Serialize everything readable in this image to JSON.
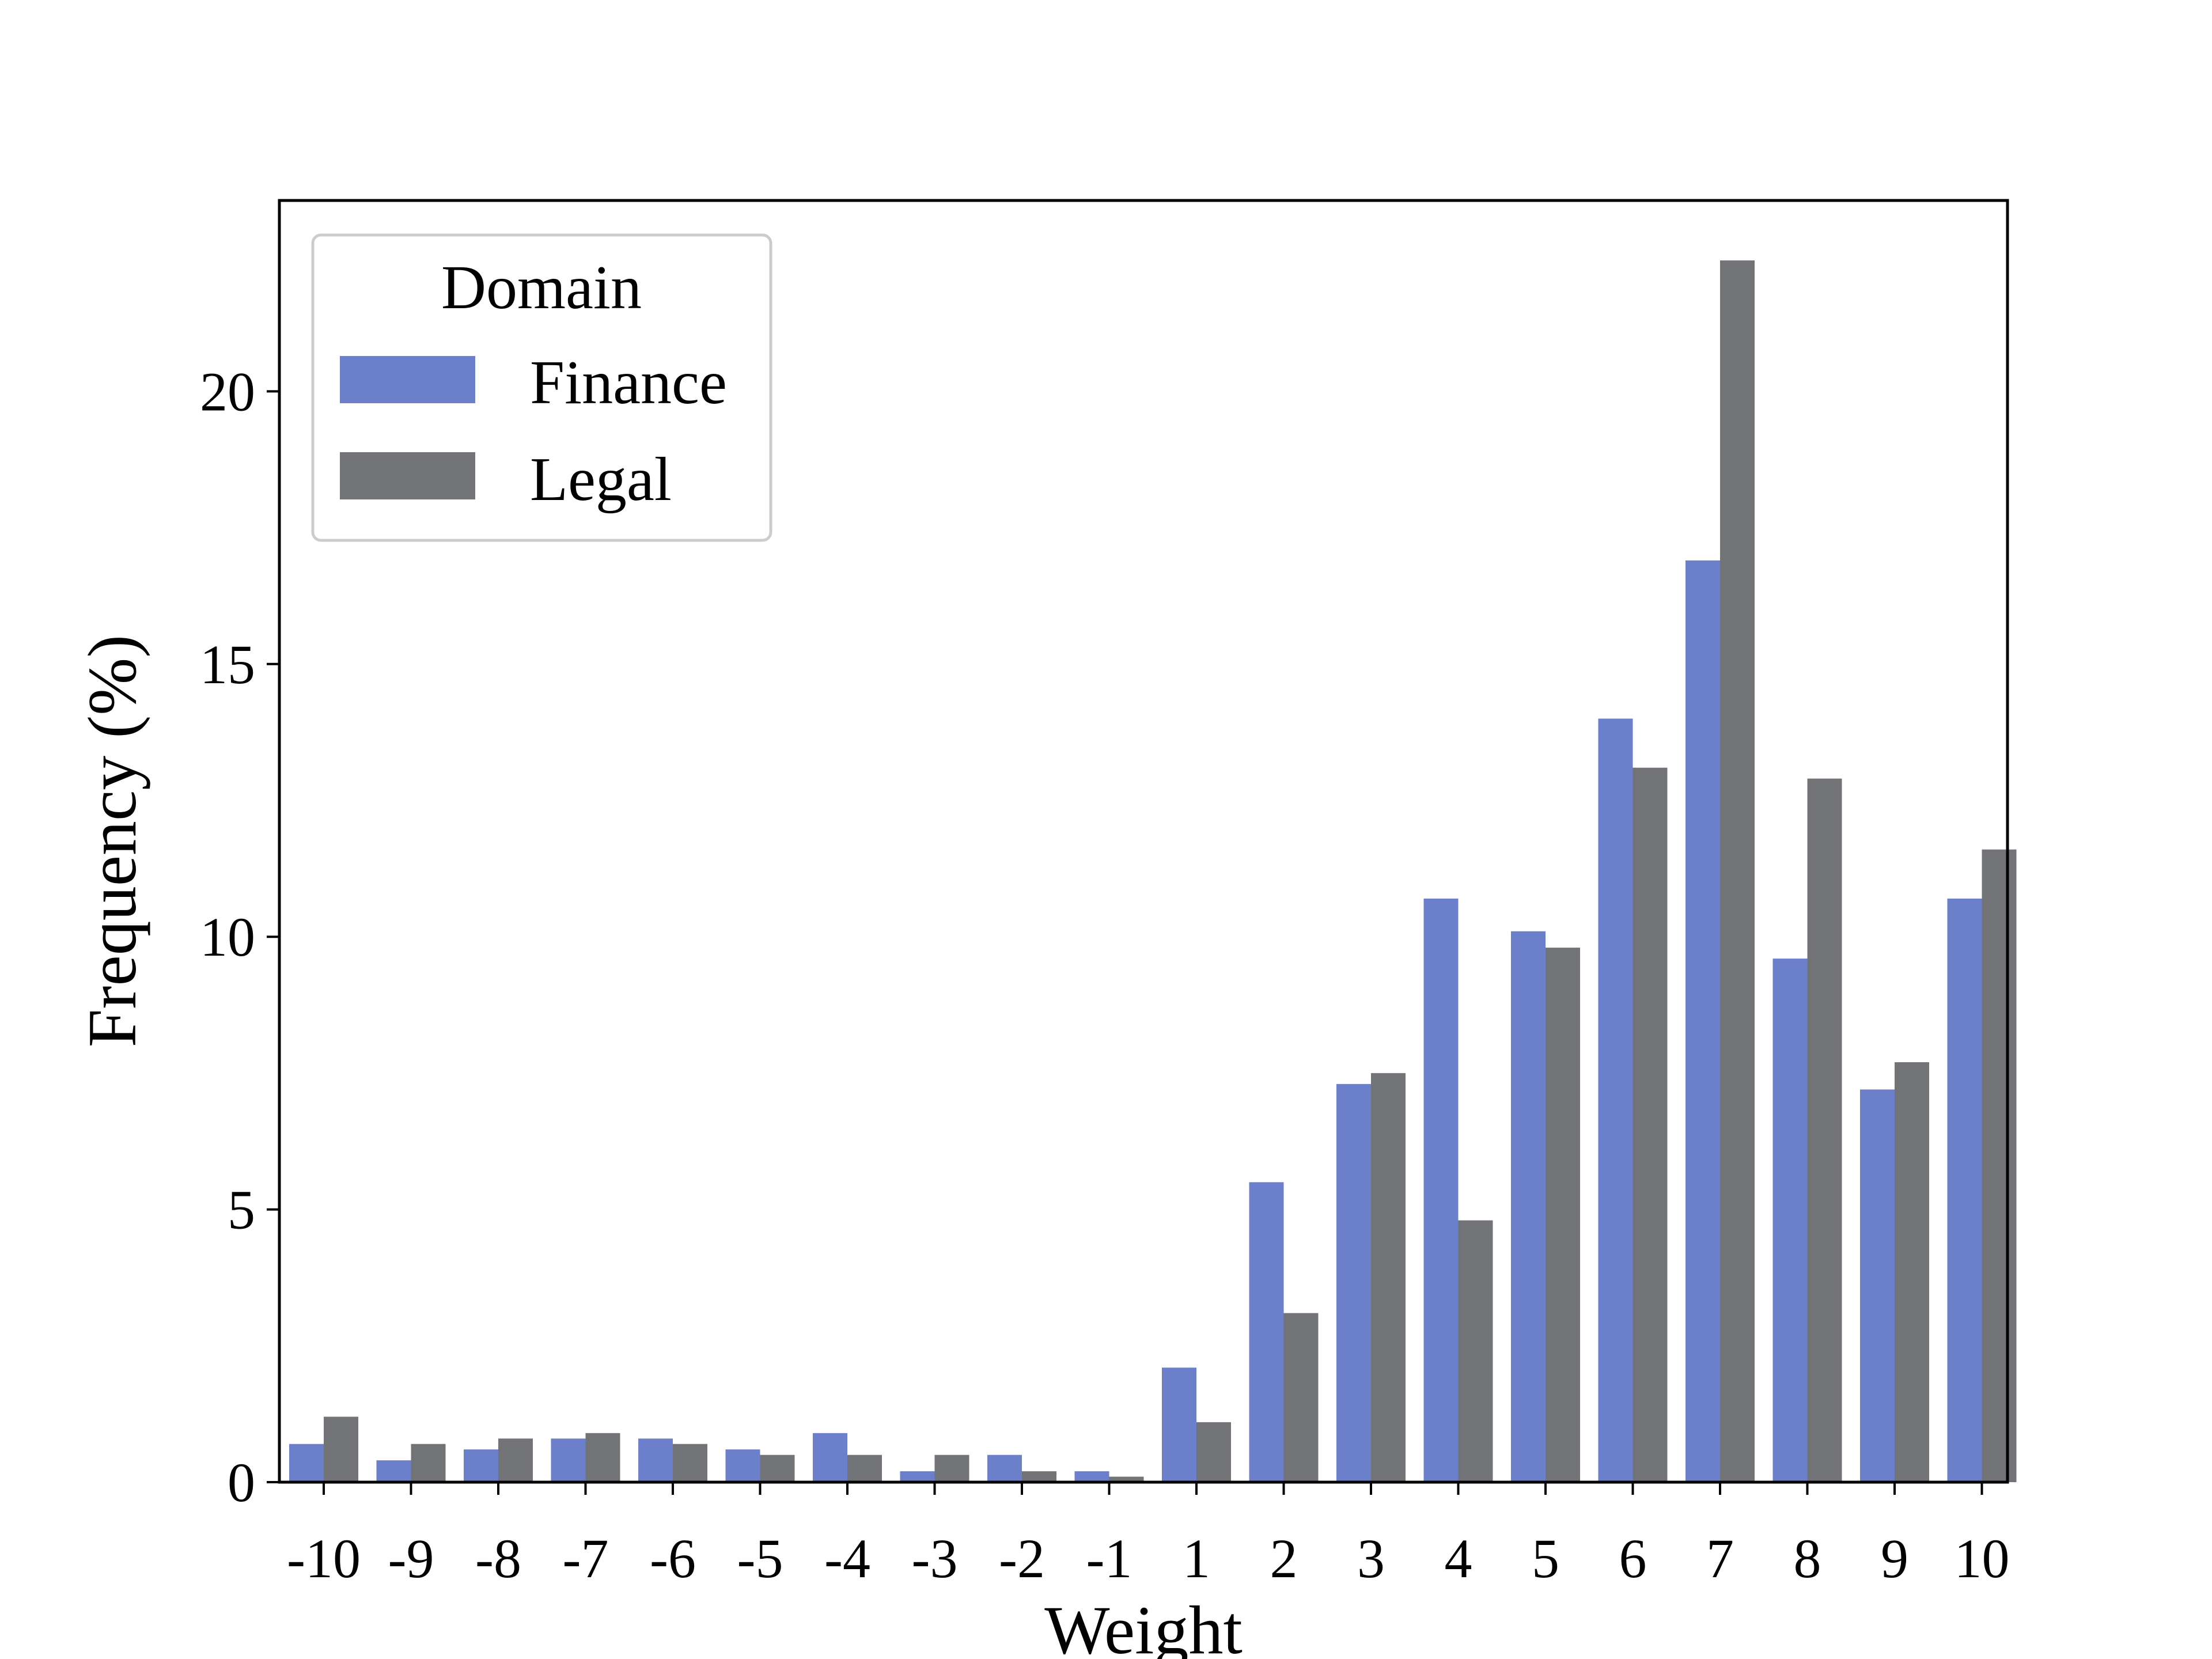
{
  "chart_data": {
    "type": "bar",
    "title": "",
    "xlabel": "Weight",
    "ylabel": "Frequency (%)",
    "categories": [
      "-10",
      "-9",
      "-8",
      "-7",
      "-6",
      "-5",
      "-4",
      "-3",
      "-2",
      "-1",
      "1",
      "2",
      "3",
      "4",
      "5",
      "6",
      "7",
      "8",
      "9",
      "10"
    ],
    "series": [
      {
        "name": "Finance",
        "color": "#6b7fcb",
        "values": [
          0.7,
          0.4,
          0.6,
          0.8,
          0.8,
          0.6,
          0.9,
          0.2,
          0.5,
          0.2,
          2.1,
          5.5,
          7.3,
          10.7,
          10.1,
          14.0,
          16.9,
          9.6,
          7.2,
          10.7
        ]
      },
      {
        "name": "Legal",
        "color": "#727377",
        "values": [
          1.2,
          0.7,
          0.8,
          0.9,
          0.7,
          0.5,
          0.5,
          0.5,
          0.2,
          0.1,
          1.1,
          3.1,
          7.5,
          4.8,
          9.8,
          13.1,
          22.4,
          12.9,
          7.7,
          11.6
        ]
      }
    ],
    "ylim": [
      0,
      23.5
    ],
    "yticks": [
      "0",
      "5",
      "10",
      "15",
      "20"
    ],
    "grid": false,
    "legend": {
      "title": "Domain",
      "placement": "top-left"
    }
  }
}
